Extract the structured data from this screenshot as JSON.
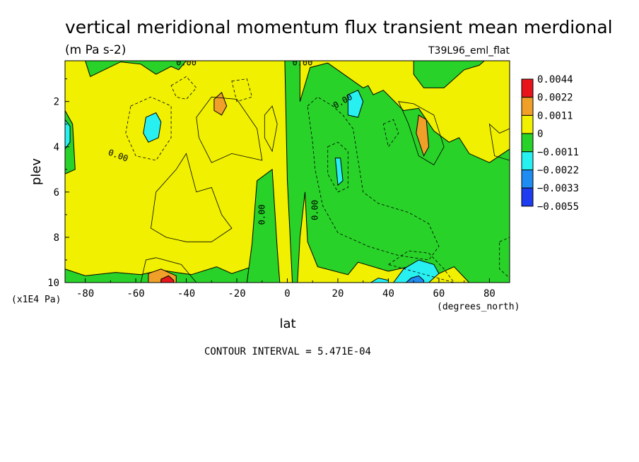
{
  "chart_data": {
    "type": "heatmap",
    "title": "vertical meridional momentum flux transient mean merdional",
    "units": "(m Pa s-2)",
    "dataset": "T39L96_eml_flat",
    "xlabel": "lat",
    "xunits": "(degrees_north)",
    "ylabel": "plev",
    "yunits": "(x1E4 Pa)",
    "footer": "CONTOUR INTERVAL = 5.471E-04",
    "xlim": [
      -88,
      88
    ],
    "ylim": [
      10,
      0.2
    ],
    "xticks": [
      -80,
      -60,
      -40,
      -20,
      0,
      20,
      40,
      60,
      80
    ],
    "yticks": [
      2,
      4,
      6,
      8,
      10
    ],
    "contour_labels": [
      {
        "text": "0.00",
        "x": -40,
        "y": 0.3
      },
      {
        "text": "0.00",
        "x": 6,
        "y": 0.3
      },
      {
        "text": "0.00",
        "x": -67,
        "y": 4.4
      },
      {
        "text": "0.00",
        "x": 22,
        "y": 2.0
      },
      {
        "text": "0.00",
        "x": -10,
        "y": 7.0
      },
      {
        "text": "0.00",
        "x": 11,
        "y": 6.8
      }
    ],
    "legend": {
      "labels": [
        "0.0044",
        "0.0022",
        "0.0011",
        "0",
        "-0.0011",
        "-0.0022",
        "-0.0033",
        "-0.0055"
      ],
      "colors": [
        "#e8141c",
        "#f0a028",
        "#f0f000",
        "#28d228",
        "#28f0f0",
        "#1e8cf0",
        "#1e3cf0"
      ]
    },
    "regions": [
      {
        "level": "pos1",
        "points": [
          [
            -88,
            0.2
          ],
          [
            -88,
            10
          ],
          [
            88,
            10
          ],
          [
            88,
            0.2
          ]
        ]
      },
      {
        "level": "neg1",
        "points": [
          [
            -88,
            10
          ],
          [
            -88,
            9.4
          ],
          [
            -80,
            9.7
          ],
          [
            -68,
            9.55
          ],
          [
            -58,
            9.65
          ],
          [
            -50,
            9.45
          ],
          [
            -38,
            9.65
          ],
          [
            -28,
            9.3
          ],
          [
            -22,
            9.6
          ],
          [
            -14,
            9.3
          ],
          [
            -10,
            9.2
          ],
          [
            -10,
            10
          ]
        ]
      },
      {
        "level": "neg1",
        "points": [
          [
            -16,
            10
          ],
          [
            -14,
            8.3
          ],
          [
            -12,
            5.5
          ],
          [
            -6,
            5.0
          ],
          [
            -4,
            8.5
          ],
          [
            -3,
            10
          ]
        ]
      },
      {
        "level": "neg1",
        "points": [
          [
            2,
            10
          ],
          [
            0,
            5.5
          ],
          [
            -1,
            0.2
          ],
          [
            5,
            0.2
          ],
          [
            5,
            2.0
          ],
          [
            9,
            0.5
          ],
          [
            16,
            0.3
          ],
          [
            30,
            1.4
          ],
          [
            32,
            1.3
          ],
          [
            34,
            1.7
          ],
          [
            38,
            1.5
          ],
          [
            46,
            2.4
          ],
          [
            52,
            2.3
          ],
          [
            58,
            3.3
          ],
          [
            64,
            3.8
          ],
          [
            68,
            3.6
          ],
          [
            72,
            4.3
          ],
          [
            80,
            4.7
          ],
          [
            88,
            4.1
          ],
          [
            88,
            10
          ],
          [
            72,
            10
          ],
          [
            66,
            9.3
          ],
          [
            60,
            9.6
          ],
          [
            48,
            9.3
          ],
          [
            40,
            9.5
          ],
          [
            28,
            9.1
          ],
          [
            24,
            9.65
          ],
          [
            12,
            9.3
          ],
          [
            8,
            8.2
          ],
          [
            7,
            6.0
          ],
          [
            5,
            8.0
          ],
          [
            4,
            10
          ]
        ]
      },
      {
        "level": "neg1",
        "points": [
          [
            -88,
            0.2
          ],
          [
            -80,
            0.2
          ],
          [
            -78,
            0.9
          ],
          [
            -66,
            0.25
          ],
          [
            -58,
            0.35
          ],
          [
            -52,
            0.8
          ],
          [
            -46,
            0.45
          ],
          [
            -43,
            0.6
          ],
          [
            -40,
            0.2
          ]
        ]
      },
      {
        "level": "neg1",
        "points": [
          [
            50,
            0.2
          ],
          [
            50,
            0.8
          ],
          [
            54,
            1.4
          ],
          [
            62,
            1.4
          ],
          [
            70,
            0.6
          ],
          [
            76,
            0.4
          ],
          [
            78,
            0.2
          ]
        ]
      },
      {
        "level": "neg1",
        "points": [
          [
            -88,
            2.4
          ],
          [
            -85,
            3.0
          ],
          [
            -84,
            5.0
          ],
          [
            -88,
            5.2
          ]
        ]
      },
      {
        "level": "pos2",
        "points": [
          [
            -29,
            1.9
          ],
          [
            -26,
            1.6
          ],
          [
            -24,
            2.2
          ],
          [
            -26,
            2.6
          ],
          [
            -29,
            2.4
          ]
        ]
      },
      {
        "level": "pos2",
        "points": [
          [
            52,
            2.6
          ],
          [
            55,
            2.8
          ],
          [
            56,
            4.0
          ],
          [
            54,
            4.4
          ],
          [
            51,
            3.4
          ]
        ]
      },
      {
        "level": "pos2",
        "points": [
          [
            -55,
            9.6
          ],
          [
            -50,
            9.4
          ],
          [
            -44,
            9.7
          ],
          [
            -44,
            10
          ],
          [
            -55,
            10
          ]
        ]
      },
      {
        "level": "pos3",
        "points": [
          [
            -50,
            9.85
          ],
          [
            -47,
            9.7
          ],
          [
            -45,
            9.9
          ],
          [
            -45,
            10
          ],
          [
            -50,
            10
          ]
        ]
      },
      {
        "level": "neg2",
        "points": [
          [
            -56,
            2.7
          ],
          [
            -52,
            2.5
          ],
          [
            -50,
            2.9
          ],
          [
            -51,
            3.6
          ],
          [
            -55,
            3.8
          ],
          [
            -57,
            3.4
          ]
        ]
      },
      {
        "level": "neg2",
        "points": [
          [
            -88,
            2.8
          ],
          [
            -86,
            3.1
          ],
          [
            -86,
            3.8
          ],
          [
            -88,
            4.1
          ]
        ]
      },
      {
        "level": "neg2",
        "points": [
          [
            24,
            1.7
          ],
          [
            28,
            1.5
          ],
          [
            30,
            2.0
          ],
          [
            28,
            2.7
          ],
          [
            24,
            2.6
          ]
        ]
      },
      {
        "level": "neg2",
        "points": [
          [
            19,
            4.5
          ],
          [
            21,
            4.5
          ],
          [
            22,
            5.5
          ],
          [
            20,
            5.7
          ]
        ]
      },
      {
        "level": "neg2",
        "points": [
          [
            42,
            10
          ],
          [
            46,
            9.4
          ],
          [
            52,
            9.0
          ],
          [
            58,
            9.2
          ],
          [
            60,
            9.6
          ],
          [
            56,
            10
          ]
        ]
      },
      {
        "level": "neg2",
        "points": [
          [
            33,
            10
          ],
          [
            36,
            9.8
          ],
          [
            40,
            9.9
          ],
          [
            40,
            10
          ]
        ]
      },
      {
        "level": "neg3",
        "points": [
          [
            47,
            10
          ],
          [
            49,
            9.8
          ],
          [
            52,
            9.7
          ],
          [
            54,
            9.9
          ],
          [
            54,
            10
          ]
        ]
      }
    ],
    "contours": [
      {
        "style": "solid",
        "points": [
          [
            -36,
            2.7
          ],
          [
            -30,
            1.8
          ],
          [
            -20,
            1.9
          ],
          [
            -12,
            3.2
          ],
          [
            -10,
            4.6
          ],
          [
            -22,
            4.3
          ],
          [
            -30,
            4.7
          ],
          [
            -35,
            3.6
          ]
        ]
      },
      {
        "style": "solid",
        "points": [
          [
            -54,
            7.6
          ],
          [
            -52,
            6.0
          ],
          [
            -44,
            5.0
          ],
          [
            -40,
            4.3
          ],
          [
            -36,
            6.0
          ],
          [
            -30,
            5.8
          ],
          [
            -26,
            7.0
          ],
          [
            -22,
            7.6
          ],
          [
            -30,
            8.2
          ],
          [
            -40,
            8.2
          ],
          [
            -48,
            8.0
          ]
        ]
      },
      {
        "style": "solid",
        "points": [
          [
            -9,
            2.6
          ],
          [
            -6,
            2.2
          ],
          [
            -4,
            3.0
          ],
          [
            -6,
            4.2
          ],
          [
            -9,
            3.6
          ]
        ]
      },
      {
        "style": "solid",
        "points": [
          [
            -58,
            10
          ],
          [
            -56,
            9.0
          ],
          [
            -52,
            8.9
          ],
          [
            -42,
            9.2
          ],
          [
            -36,
            10
          ]
        ]
      },
      {
        "style": "solid",
        "points": [
          [
            44,
            2.0
          ],
          [
            50,
            2.1
          ],
          [
            58,
            2.6
          ],
          [
            62,
            4.0
          ],
          [
            58,
            4.8
          ],
          [
            52,
            4.4
          ],
          [
            48,
            3.0
          ]
        ]
      },
      {
        "style": "solid",
        "points": [
          [
            80,
            3.0
          ],
          [
            84,
            3.4
          ],
          [
            88,
            3.2
          ],
          [
            88,
            4.6
          ],
          [
            82,
            4.4
          ]
        ]
      },
      {
        "style": "dashed",
        "points": [
          [
            -62,
            2.2
          ],
          [
            -54,
            1.8
          ],
          [
            -46,
            2.2
          ],
          [
            -46,
            3.6
          ],
          [
            -52,
            4.6
          ],
          [
            -60,
            4.4
          ],
          [
            -64,
            3.4
          ]
        ]
      },
      {
        "style": "dashed",
        "points": [
          [
            -46,
            1.3
          ],
          [
            -40,
            0.9
          ],
          [
            -36,
            1.4
          ],
          [
            -40,
            1.9
          ],
          [
            -44,
            1.8
          ]
        ]
      },
      {
        "style": "dashed",
        "points": [
          [
            -22,
            1.1
          ],
          [
            -16,
            1.0
          ],
          [
            -14,
            1.8
          ],
          [
            -20,
            2.0
          ]
        ]
      },
      {
        "style": "dashed",
        "points": [
          [
            8,
            2.2
          ],
          [
            12,
            1.8
          ],
          [
            18,
            2.2
          ],
          [
            22,
            2.6
          ],
          [
            26,
            3.2
          ],
          [
            28,
            4.6
          ],
          [
            30,
            6.0
          ],
          [
            36,
            6.5
          ],
          [
            48,
            6.9
          ],
          [
            56,
            7.4
          ],
          [
            60,
            8.4
          ],
          [
            56,
            9.0
          ],
          [
            44,
            8.8
          ],
          [
            32,
            8.4
          ],
          [
            20,
            7.8
          ],
          [
            14,
            6.6
          ],
          [
            11,
            5.0
          ],
          [
            10,
            3.8
          ]
        ]
      },
      {
        "style": "dashed",
        "points": [
          [
            16,
            4.0
          ],
          [
            20,
            3.8
          ],
          [
            24,
            4.2
          ],
          [
            24,
            5.8
          ],
          [
            20,
            6.0
          ],
          [
            16,
            5.2
          ]
        ]
      },
      {
        "style": "dashed",
        "points": [
          [
            38,
            3.0
          ],
          [
            42,
            2.8
          ],
          [
            44,
            3.4
          ],
          [
            40,
            4.0
          ]
        ]
      },
      {
        "style": "dashed",
        "points": [
          [
            40,
            9.2
          ],
          [
            48,
            8.6
          ],
          [
            56,
            8.7
          ],
          [
            62,
            9.4
          ],
          [
            66,
            10
          ]
        ]
      },
      {
        "style": "dashed",
        "points": [
          [
            84,
            8.2
          ],
          [
            88,
            8.0
          ],
          [
            88,
            9.8
          ],
          [
            84,
            9.4
          ]
        ]
      }
    ]
  }
}
